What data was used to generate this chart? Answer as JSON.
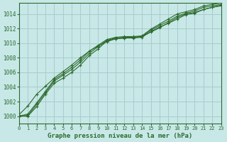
{
  "title": "Graphe pression niveau de la mer (hPa)",
  "background_color": "#c8e8e8",
  "grid_color": "#aacccc",
  "line_color": "#2d6a2d",
  "xlim": [
    0,
    23
  ],
  "ylim": [
    999.0,
    1015.5
  ],
  "yticks": [
    1000,
    1002,
    1004,
    1006,
    1008,
    1010,
    1012,
    1014
  ],
  "xticks": [
    0,
    1,
    2,
    3,
    4,
    5,
    6,
    7,
    8,
    9,
    10,
    11,
    12,
    13,
    14,
    15,
    16,
    17,
    18,
    19,
    20,
    21,
    22,
    23
  ],
  "series": [
    [
      1000.0,
      1000.0,
      1001.3,
      1003.0,
      1004.5,
      1005.2,
      1006.0,
      1007.0,
      1008.3,
      1009.2,
      1010.3,
      1010.6,
      1010.7,
      1010.7,
      1010.8,
      1011.6,
      1012.2,
      1012.7,
      1013.3,
      1013.9,
      1014.1,
      1014.6,
      1014.9,
      1015.1
    ],
    [
      1000.0,
      1000.1,
      1001.6,
      1003.2,
      1004.8,
      1005.6,
      1006.4,
      1007.4,
      1008.6,
      1009.5,
      1010.4,
      1010.7,
      1010.8,
      1010.8,
      1010.9,
      1011.8,
      1012.4,
      1013.0,
      1013.7,
      1014.1,
      1014.4,
      1014.9,
      1015.1,
      1015.3
    ],
    [
      1000.0,
      1000.3,
      1001.8,
      1003.4,
      1005.0,
      1005.8,
      1006.7,
      1007.7,
      1008.9,
      1009.7,
      1010.5,
      1010.8,
      1010.9,
      1010.9,
      1011.0,
      1011.9,
      1012.6,
      1013.3,
      1014.0,
      1014.3,
      1014.6,
      1015.1,
      1015.3,
      1015.5
    ],
    [
      1000.2,
      1001.4,
      1003.0,
      1004.1,
      1005.2,
      1006.1,
      1007.0,
      1008.0,
      1008.9,
      1009.6,
      1010.2,
      1010.6,
      1010.7,
      1010.8,
      1010.9,
      1011.5,
      1012.1,
      1012.8,
      1013.5,
      1014.0,
      1014.2,
      1014.6,
      1014.9,
      1015.2
    ]
  ],
  "title_fontsize": 6.5,
  "tick_fontsize": 5.5,
  "xlabel_fontsize": 5.0
}
